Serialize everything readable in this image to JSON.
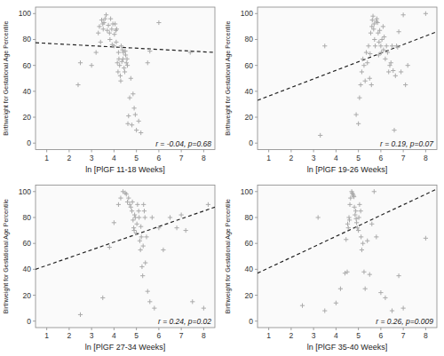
{
  "chart_data": [
    {
      "type": "scatter",
      "xlabel": "ln [PlGF 11-18 Weeks]",
      "ylabel": "Birthweight for Gestational Age Percentile",
      "annotation": "r = -0.04, p=0.68",
      "xlim": [
        0.5,
        8.5
      ],
      "ylim": [
        -5,
        105
      ],
      "xticks": [
        1,
        2,
        3,
        4,
        5,
        6,
        7,
        8
      ],
      "yticks": [
        0,
        20,
        40,
        60,
        80,
        100
      ],
      "series": [
        {
          "type": "scatter",
          "color": "#aaaaaa",
          "marker": "plus",
          "x": [
            2.4,
            2.5,
            3.0,
            3.2,
            3.3,
            3.35,
            3.4,
            3.45,
            3.5,
            3.52,
            3.55,
            3.6,
            3.65,
            3.7,
            3.75,
            3.8,
            3.82,
            3.85,
            3.9,
            3.92,
            3.95,
            4.0,
            4.02,
            4.05,
            4.08,
            4.1,
            4.12,
            4.15,
            4.18,
            4.2,
            4.22,
            4.25,
            4.28,
            4.3,
            4.32,
            4.35,
            4.38,
            4.4,
            4.42,
            4.45,
            4.48,
            4.5,
            4.52,
            4.55,
            4.58,
            4.6,
            4.62,
            4.65,
            4.7,
            4.75,
            4.8,
            4.85,
            4.9,
            4.95,
            5.0,
            5.1,
            5.2,
            5.5,
            5.6,
            6.0,
            7.4
          ],
          "values": [
            45,
            62,
            60,
            70,
            85,
            90,
            78,
            95,
            92,
            88,
            93,
            96,
            99,
            87,
            91,
            85,
            80,
            96,
            88,
            76,
            92,
            75,
            84,
            92,
            87,
            78,
            88,
            62,
            55,
            70,
            65,
            60,
            52,
            48,
            75,
            63,
            72,
            65,
            70,
            58,
            55,
            71,
            68,
            62,
            65,
            60,
            15,
            21,
            35,
            50,
            14,
            38,
            27,
            22,
            10,
            17,
            8,
            62,
            71,
            93,
            70
          ]
        },
        {
          "type": "line",
          "color": "#222222",
          "line_style": "dashed",
          "x": [
            0.5,
            8.5
          ],
          "values": [
            77.5,
            70.0
          ]
        }
      ]
    },
    {
      "type": "scatter",
      "xlabel": "ln [PlGF 19-26 Weeks]",
      "ylabel": "Birthweight for Gestational Age Percentile",
      "annotation": "r = 0.19, p=0.07",
      "xlim": [
        0.5,
        8.5
      ],
      "ylim": [
        -5,
        105
      ],
      "xticks": [
        1,
        2,
        3,
        4,
        5,
        6,
        7,
        8
      ],
      "yticks": [
        0,
        20,
        40,
        60,
        80,
        100
      ],
      "series": [
        {
          "type": "scatter",
          "color": "#aaaaaa",
          "marker": "plus",
          "x": [
            3.3,
            3.5,
            4.9,
            5.0,
            5.05,
            5.1,
            5.15,
            5.2,
            5.25,
            5.3,
            5.35,
            5.4,
            5.45,
            5.5,
            5.52,
            5.55,
            5.58,
            5.6,
            5.62,
            5.65,
            5.68,
            5.7,
            5.72,
            5.75,
            5.8,
            5.82,
            5.85,
            5.88,
            5.9,
            5.92,
            5.95,
            6.0,
            6.02,
            6.05,
            6.1,
            6.12,
            6.15,
            6.2,
            6.25,
            6.3,
            6.35,
            6.4,
            6.45,
            6.5,
            6.55,
            6.6,
            6.65,
            6.7,
            6.75,
            6.8,
            6.9,
            7.0,
            7.1,
            7.2,
            8.0
          ],
          "values": [
            6,
            75,
            22,
            15,
            35,
            45,
            55,
            65,
            60,
            48,
            70,
            62,
            75,
            50,
            69,
            85,
            45,
            90,
            95,
            98,
            88,
            92,
            80,
            75,
            94,
            96,
            93,
            85,
            68,
            78,
            87,
            75,
            70,
            80,
            90,
            72,
            82,
            65,
            75,
            70,
            55,
            60,
            62,
            75,
            56,
            10,
            52,
            75,
            74,
            86,
            55,
            99,
            45,
            60,
            100
          ]
        },
        {
          "type": "line",
          "color": "#222222",
          "line_style": "dashed",
          "x": [
            0.5,
            8.5
          ],
          "values": [
            33.0,
            86.0
          ]
        }
      ]
    },
    {
      "type": "scatter",
      "xlabel": "ln [PlGF 27-34 Weeks]",
      "ylabel": "Birthweight for Gestational Age Percentile",
      "annotation": "r = 0.24, p=0.02",
      "xlim": [
        0.5,
        8.5
      ],
      "ylim": [
        -5,
        105
      ],
      "xticks": [
        1,
        2,
        3,
        4,
        5,
        6,
        7,
        8
      ],
      "yticks": [
        0,
        20,
        40,
        60,
        80,
        100
      ],
      "series": [
        {
          "type": "scatter",
          "color": "#aaaaaa",
          "marker": "plus",
          "x": [
            2.5,
            3.5,
            3.8,
            4.0,
            4.2,
            4.3,
            4.4,
            4.5,
            4.55,
            4.6,
            4.65,
            4.7,
            4.75,
            4.8,
            4.82,
            4.85,
            4.88,
            4.9,
            4.92,
            4.95,
            5.0,
            5.02,
            5.05,
            5.1,
            5.12,
            5.15,
            5.18,
            5.2,
            5.22,
            5.25,
            5.28,
            5.3,
            5.32,
            5.35,
            5.38,
            5.4,
            5.45,
            5.5,
            5.6,
            5.7,
            5.8,
            6.0,
            6.2,
            6.5,
            6.8,
            7.0,
            7.2,
            7.5,
            8.0,
            8.2
          ],
          "values": [
            5,
            18,
            57,
            76,
            90,
            95,
            100,
            99,
            98,
            92,
            95,
            90,
            88,
            85,
            92,
            78,
            72,
            70,
            82,
            80,
            68,
            75,
            90,
            85,
            80,
            62,
            55,
            73,
            65,
            42,
            35,
            58,
            90,
            85,
            80,
            45,
            65,
            23,
            15,
            80,
            10,
            72,
            55,
            80,
            72,
            82,
            70,
            15,
            10,
            90
          ]
        },
        {
          "type": "line",
          "color": "#222222",
          "line_style": "dashed",
          "x": [
            0.5,
            8.5
          ],
          "values": [
            40.0,
            88.0
          ]
        }
      ]
    },
    {
      "type": "scatter",
      "xlabel": "ln [PlGF 35-40 Weeks]",
      "ylabel": "Birthweight for Gestational Age Percentile",
      "annotation": "r = 0.26, p=0.009",
      "xlim": [
        0.5,
        8.5
      ],
      "ylim": [
        -5,
        105
      ],
      "xticks": [
        1,
        2,
        3,
        4,
        5,
        6,
        7,
        8
      ],
      "yticks": [
        0,
        20,
        40,
        60,
        80,
        100
      ],
      "series": [
        {
          "type": "scatter",
          "color": "#aaaaaa",
          "marker": "plus",
          "x": [
            2.5,
            3.2,
            3.5,
            4.0,
            4.2,
            4.4,
            4.45,
            4.5,
            4.52,
            4.55,
            4.58,
            4.6,
            4.62,
            4.65,
            4.7,
            4.72,
            4.75,
            4.78,
            4.8,
            4.82,
            4.85,
            4.88,
            4.9,
            4.92,
            4.95,
            5.0,
            5.02,
            5.05,
            5.1,
            5.12,
            5.15,
            5.2,
            5.25,
            5.3,
            5.4,
            5.5,
            5.6,
            5.7,
            5.8,
            6.0,
            6.2,
            6.5,
            6.8,
            7.0,
            8.0
          ],
          "values": [
            12,
            80,
            8,
            14,
            25,
            37,
            63,
            38,
            75,
            72,
            80,
            78,
            90,
            95,
            100,
            99,
            98,
            97,
            96,
            88,
            82,
            85,
            79,
            76,
            72,
            70,
            80,
            90,
            85,
            65,
            55,
            60,
            38,
            25,
            62,
            36,
            75,
            100,
            65,
            22,
            18,
            8,
            35,
            10,
            64
          ]
        },
        {
          "type": "line",
          "color": "#222222",
          "line_style": "dashed",
          "x": [
            0.5,
            8.5
          ],
          "values": [
            37.0,
            102.0
          ]
        }
      ]
    }
  ]
}
